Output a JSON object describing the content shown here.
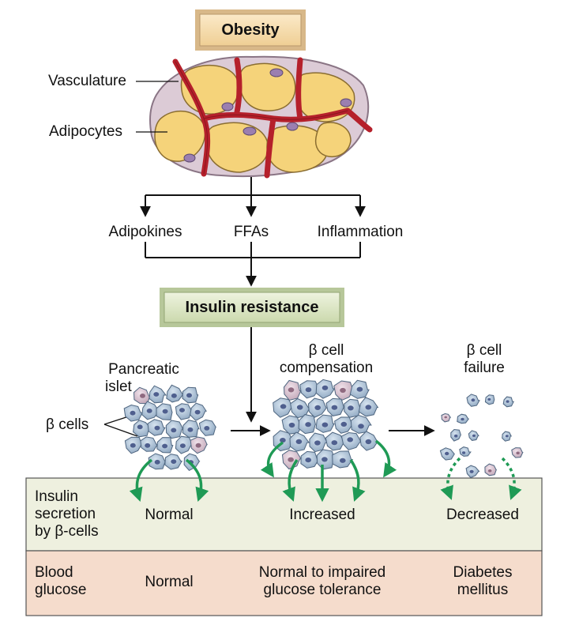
{
  "top_box": {
    "label": "Obesity",
    "fill": "#f6ddb0"
  },
  "tissue_labels": {
    "vasculature": "Vasculature",
    "adipocytes": "Adipocytes"
  },
  "factors": {
    "adipokines": "Adipokines",
    "ffas": "FFAs",
    "inflammation": "Inflammation"
  },
  "resistance_box": {
    "label": "Insulin resistance",
    "fill": "#dfe9c8"
  },
  "islet_labels": {
    "pancreatic": [
      "Pancreatic",
      "islet"
    ],
    "beta_cells": "β cells",
    "compensation": [
      "β cell",
      "compensation"
    ],
    "failure": [
      "β cell",
      "failure"
    ]
  },
  "secretion_row": {
    "header": [
      "Insulin",
      "secretion",
      "by β-cells"
    ],
    "values": [
      "Normal",
      "Increased",
      "Decreased"
    ],
    "fill": "#eef0df"
  },
  "glucose_row": {
    "header": [
      "Blood",
      "glucose"
    ],
    "values": [
      [
        "Normal"
      ],
      [
        "Normal to impaired",
        "glucose tolerance"
      ],
      [
        "Diabetes",
        "mellitus"
      ]
    ],
    "fill": "#f5dccc"
  },
  "colors": {
    "adipocyte": "#f5d37a",
    "vessel": "#b5202b",
    "arrow_green": "#1f9a55",
    "beta_cell": "#a9c0d6",
    "alpha_cell": "#d9c3cf"
  }
}
